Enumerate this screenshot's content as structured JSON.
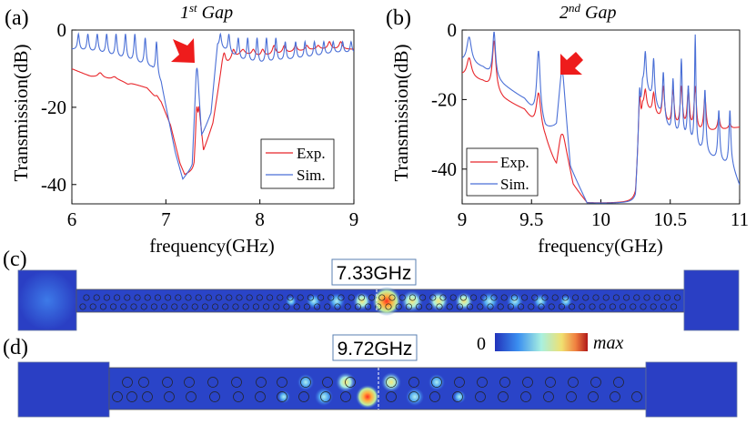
{
  "chart_data": [
    {
      "type": "line",
      "panel": "(a)",
      "title": "1st Gap",
      "title_base": "1",
      "title_sup": "st",
      "title_rest": " Gap",
      "xlabel": "frequency(GHz)",
      "ylabel": "Transmission(dB)",
      "xlim": [
        6,
        9
      ],
      "ylim": [
        -45,
        0
      ],
      "xticks": [
        6,
        7,
        8,
        9
      ],
      "yticks": [
        0,
        -20,
        -40
      ],
      "legend_position": "lower-right",
      "annotation": "red arrow pointing to peak near 7.33 GHz",
      "series": [
        {
          "name": "Exp.",
          "color": "#e8262b",
          "baseline": [
            [
              6.0,
              -10
            ],
            [
              6.2,
              -12
            ],
            [
              6.5,
              -13
            ],
            [
              6.8,
              -15
            ],
            [
              6.95,
              -19
            ],
            [
              7.05,
              -25
            ],
            [
              7.15,
              -35
            ],
            [
              7.2,
              -38
            ],
            [
              7.3,
              -37
            ],
            [
              7.35,
              -20
            ],
            [
              7.4,
              -32
            ],
            [
              7.5,
              -25
            ],
            [
              7.6,
              -10
            ],
            [
              7.8,
              -6
            ],
            [
              8.0,
              -7
            ],
            [
              8.3,
              -6
            ],
            [
              8.6,
              -5
            ],
            [
              8.8,
              -5
            ],
            [
              9.0,
              -5
            ]
          ]
        },
        {
          "name": "Sim.",
          "color": "#4a6fd6",
          "baseline": [
            [
              6.0,
              -5
            ],
            [
              6.3,
              -6
            ],
            [
              6.6,
              -8
            ],
            [
              6.85,
              -10
            ],
            [
              6.95,
              -14
            ],
            [
              7.0,
              -20
            ],
            [
              7.1,
              -32
            ],
            [
              7.18,
              -39
            ],
            [
              7.28,
              -36
            ],
            [
              7.33,
              -10
            ],
            [
              7.38,
              -28
            ],
            [
              7.48,
              -22
            ],
            [
              7.55,
              -4
            ],
            [
              7.8,
              -8
            ],
            [
              8.0,
              -9
            ],
            [
              8.3,
              -8
            ],
            [
              8.6,
              -7
            ],
            [
              8.8,
              -6
            ],
            [
              9.0,
              -6
            ]
          ]
        }
      ]
    },
    {
      "type": "line",
      "panel": "(b)",
      "title": "2nd  Gap",
      "title_base": "2",
      "title_sup": "nd",
      "title_rest": "  Gap",
      "xlabel": "frequency(GHz)",
      "ylabel": "Transmission(dB)",
      "xlim": [
        9,
        11
      ],
      "ylim": [
        -50,
        0
      ],
      "xticks": [
        9,
        9.5,
        10,
        10.5,
        11
      ],
      "yticks": [
        0,
        -20,
        -40
      ],
      "legend_position": "lower-left",
      "annotation": "red arrow pointing to peak near 9.72 GHz",
      "series": [
        {
          "name": "Exp.",
          "color": "#e8262b",
          "baseline": [
            [
              9.0,
              -13
            ],
            [
              9.15,
              -15
            ],
            [
              9.3,
              -20
            ],
            [
              9.45,
              -23
            ],
            [
              9.6,
              -32
            ],
            [
              9.68,
              -40
            ],
            [
              9.72,
              -30
            ],
            [
              9.8,
              -45
            ],
            [
              9.9,
              -50
            ],
            [
              10.25,
              -50
            ],
            [
              10.3,
              -22
            ],
            [
              10.5,
              -28
            ],
            [
              10.7,
              -30
            ],
            [
              11.0,
              -28
            ]
          ]
        },
        {
          "name": "Sim.",
          "color": "#4a6fd6",
          "baseline": [
            [
              9.0,
              -9
            ],
            [
              9.15,
              -11
            ],
            [
              9.3,
              -16
            ],
            [
              9.45,
              -20
            ],
            [
              9.6,
              -29
            ],
            [
              9.68,
              -28
            ],
            [
              9.72,
              -12
            ],
            [
              9.78,
              -40
            ],
            [
              9.9,
              -50
            ],
            [
              10.25,
              -50
            ],
            [
              10.3,
              -15
            ],
            [
              10.5,
              -30
            ],
            [
              10.7,
              -35
            ],
            [
              10.95,
              -40
            ],
            [
              11.0,
              -45
            ]
          ]
        }
      ]
    }
  ],
  "panels": {
    "c": {
      "label": "(c)",
      "frequency": "7.33GHz"
    },
    "d": {
      "label": "(d)",
      "frequency": "9.72GHz"
    }
  },
  "colorbar": {
    "min_label": "0",
    "max_label": "max"
  }
}
